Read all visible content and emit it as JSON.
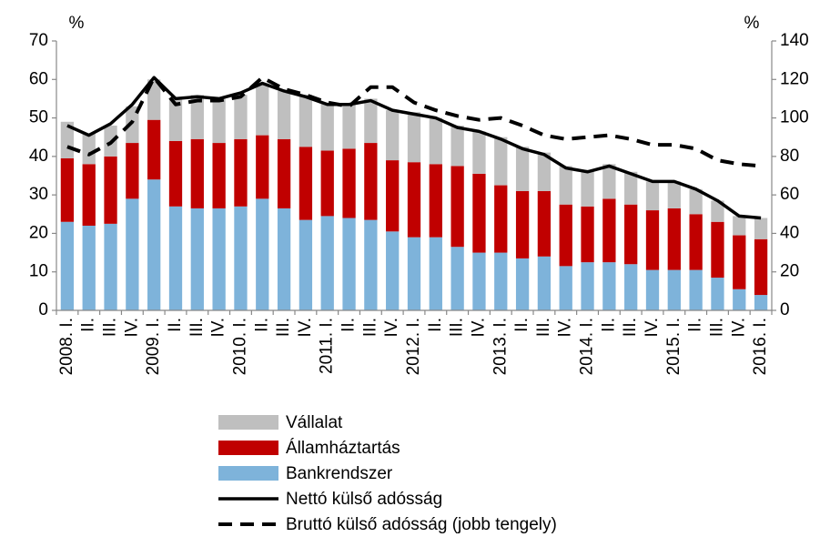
{
  "chart_data": {
    "type": "bar",
    "y_unit": "%",
    "y2_unit": "%",
    "categories": [
      "2008. I.",
      "II.",
      "III.",
      "IV.",
      "2009. I.",
      "II.",
      "III.",
      "IV.",
      "2010. I.",
      "II.",
      "III.",
      "IV.",
      "2011. I.",
      "II.",
      "III.",
      "IV.",
      "2012. I.",
      "II.",
      "III.",
      "IV.",
      "2013. I.",
      "II.",
      "III.",
      "IV.",
      "2014. I.",
      "II.",
      "III.",
      "IV.",
      "2015. I.",
      "II.",
      "III.",
      "IV.",
      "2016. I."
    ],
    "series": [
      {
        "name": "Vállalat",
        "type": "bar",
        "color": "#bfbfbf",
        "values": [
          9.5,
          8,
          8,
          9.5,
          10.5,
          11,
          11.5,
          11.5,
          11.5,
          13.5,
          12.5,
          13.5,
          12.5,
          11.5,
          11.5,
          13,
          13,
          12,
          10.5,
          11,
          12.5,
          11.5,
          10,
          10,
          9.5,
          9,
          8.5,
          7.5,
          7,
          6.5,
          5.5,
          5,
          5.5
        ]
      },
      {
        "name": "Államháztartás",
        "type": "bar",
        "color": "#c00000",
        "values": [
          16.5,
          16,
          17.5,
          14.5,
          15.5,
          17,
          18,
          17,
          17.5,
          16.5,
          18,
          19,
          17,
          18,
          20,
          18.5,
          19.5,
          19,
          21,
          20.5,
          17.5,
          17.5,
          17,
          16,
          14.5,
          16.5,
          15.5,
          15.5,
          16,
          14.5,
          14.5,
          14,
          14.5
        ]
      },
      {
        "name": "Bankrendszer",
        "type": "bar",
        "color": "#7eb3da",
        "values": [
          23,
          22,
          22.5,
          29,
          34,
          27,
          26.5,
          26.5,
          27,
          29,
          26.5,
          23.5,
          24.5,
          24,
          23.5,
          20.5,
          19,
          19,
          16.5,
          15,
          15,
          13.5,
          14,
          11.5,
          12.5,
          12.5,
          12,
          10.5,
          10.5,
          10.5,
          8.5,
          5.5,
          4
        ]
      },
      {
        "name": "Nettó külső adósság",
        "type": "line",
        "color": "#000000",
        "values": [
          48,
          45.5,
          48.5,
          53.5,
          60.5,
          55,
          55.5,
          55,
          56.5,
          59,
          57,
          55.5,
          53.5,
          53.5,
          54.5,
          52,
          51,
          50,
          47.5,
          46.5,
          44.5,
          42,
          40.5,
          37,
          36,
          37.5,
          35.5,
          33.5,
          33.5,
          31.5,
          28.5,
          24.5,
          24
        ]
      },
      {
        "name": "Bruttó külső adósság (jobb tengely)",
        "type": "line",
        "dashed": true,
        "axis": "y2",
        "color": "#000000",
        "values": [
          85,
          81,
          87,
          98,
          121,
          107,
          109,
          109,
          111,
          121,
          115,
          112,
          108,
          106,
          116,
          116,
          108,
          104,
          101,
          99,
          100,
          96,
          91,
          89,
          90,
          91,
          89,
          86,
          86,
          84,
          78,
          76,
          75
        ]
      }
    ],
    "ylim": [
      0,
      70
    ],
    "yticks": [
      0,
      10,
      20,
      30,
      40,
      50,
      60,
      70
    ],
    "y2lim": [
      0,
      140
    ],
    "y2ticks": [
      0,
      20,
      40,
      60,
      80,
      100,
      120,
      140
    ],
    "grid": false,
    "legend": "bottom"
  }
}
